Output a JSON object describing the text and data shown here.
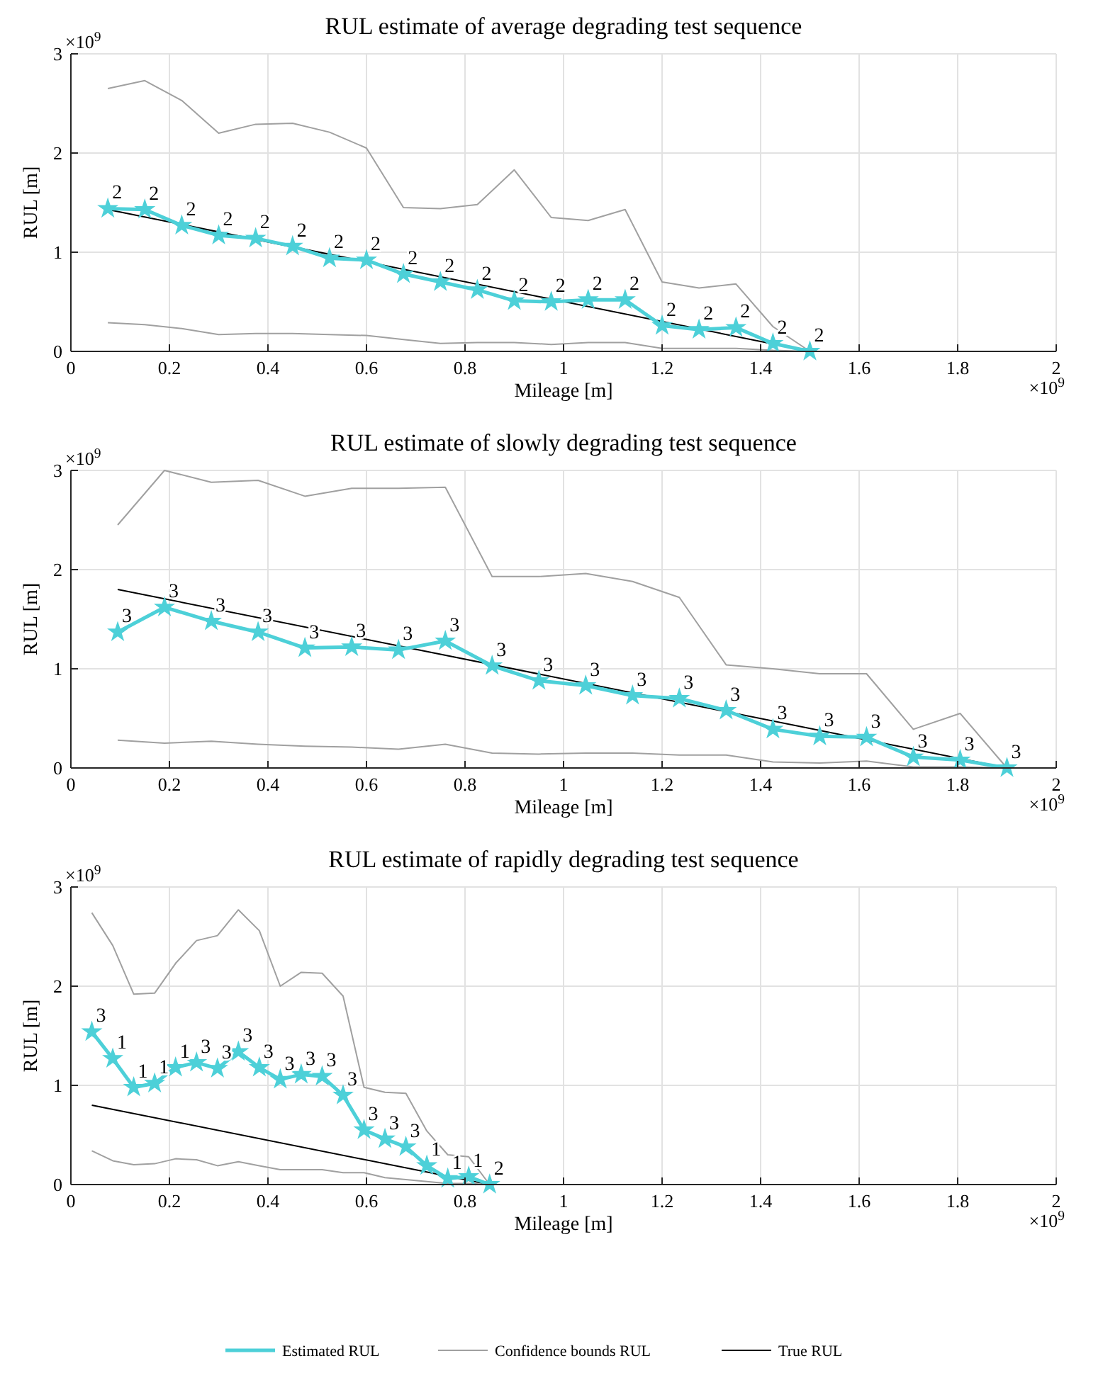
{
  "chart_data": [
    {
      "type": "line",
      "title": "RUL estimate of average degrading test sequence",
      "xlabel": "Mileage [m]",
      "ylabel": "RUL [m]",
      "xlim": [
        0,
        2
      ],
      "ylim": [
        0,
        3
      ],
      "xticks": [
        0,
        0.2,
        0.4,
        0.6,
        0.8,
        1,
        1.2,
        1.4,
        1.6,
        1.8,
        2
      ],
      "yticks": [
        0,
        1,
        2,
        3
      ],
      "grid": true,
      "legend": "bottom",
      "x": [
        0.075,
        0.15,
        0.225,
        0.3,
        0.375,
        0.45,
        0.525,
        0.6,
        0.675,
        0.75,
        0.825,
        0.9,
        0.975,
        1.05,
        1.125,
        1.2,
        1.275,
        1.35,
        1.425,
        1.5
      ],
      "series": [
        {
          "name": "Estimated RUL",
          "color": "#4dd0d8",
          "marker": "star",
          "values": [
            1.44,
            1.43,
            1.27,
            1.17,
            1.14,
            1.06,
            0.94,
            0.92,
            0.78,
            0.7,
            0.62,
            0.51,
            0.5,
            0.52,
            0.52,
            0.26,
            0.22,
            0.24,
            0.08,
            0
          ]
        },
        {
          "name": "Confidence bounds RUL",
          "color": "#a0a0a0",
          "values": [
            2.65,
            2.73,
            2.53,
            2.2,
            2.29,
            2.3,
            2.21,
            2.05,
            1.45,
            1.44,
            1.48,
            1.83,
            1.35,
            1.32,
            1.43,
            0.7,
            0.64,
            0.68,
            0.25,
            0
          ]
        },
        {
          "color": "#a0a0a0",
          "values": [
            0.29,
            0.27,
            0.23,
            0.17,
            0.18,
            0.18,
            0.17,
            0.16,
            0.12,
            0.08,
            0.09,
            0.09,
            0.07,
            0.09,
            0.09,
            0.03,
            0.03,
            0.03,
            0.01,
            0
          ]
        },
        {
          "name": "True RUL",
          "color": "#000000",
          "x": [
            0.075,
            1.5
          ],
          "values": [
            1.43,
            0
          ]
        }
      ],
      "annotations": [
        "×10$^{9}$",
        "×10$^{9}$",
        {
          "text": "2",
          "x": 0.075,
          "y": 1.44
        },
        {
          "text": "2",
          "x": 0.15,
          "y": 1.43
        },
        {
          "text": "2",
          "x": 0.225,
          "y": 1.27
        },
        {
          "text": "2",
          "x": 0.3,
          "y": 1.17
        },
        {
          "text": "2",
          "x": 0.375,
          "y": 1.14
        },
        {
          "text": "2",
          "x": 0.45,
          "y": 1.06
        },
        {
          "text": "2",
          "x": 0.525,
          "y": 0.94
        },
        {
          "text": "2",
          "x": 0.6,
          "y": 0.92
        },
        {
          "text": "2",
          "x": 0.675,
          "y": 0.78
        },
        {
          "text": "2",
          "x": 0.75,
          "y": 0.7
        },
        {
          "text": "2",
          "x": 0.825,
          "y": 0.62
        },
        {
          "text": "2",
          "x": 0.9,
          "y": 0.51
        },
        {
          "text": "2",
          "x": 0.975,
          "y": 0.5
        },
        {
          "text": "2",
          "x": 1.05,
          "y": 0.52
        },
        {
          "text": "2",
          "x": 1.125,
          "y": 0.52
        },
        {
          "text": "2",
          "x": 1.2,
          "y": 0.26
        },
        {
          "text": "2",
          "x": 1.275,
          "y": 0.22
        },
        {
          "text": "2",
          "x": 1.35,
          "y": 0.24
        },
        {
          "text": "2",
          "x": 1.425,
          "y": 0.08
        },
        {
          "text": "2",
          "x": 1.5,
          "y": 0
        }
      ]
    },
    {
      "type": "line",
      "title": "RUL estimate of slowly degrading test sequence",
      "xlabel": "Mileage [m]",
      "ylabel": "RUL [m]",
      "xlim": [
        0,
        2
      ],
      "ylim": [
        0,
        3
      ],
      "xticks": [
        0,
        0.2,
        0.4,
        0.6,
        0.8,
        1,
        1.2,
        1.4,
        1.6,
        1.8,
        2
      ],
      "yticks": [
        0,
        1,
        2,
        3
      ],
      "grid": true,
      "x": [
        0.095,
        0.19,
        0.285,
        0.38,
        0.475,
        0.57,
        0.665,
        0.76,
        0.855,
        0.95,
        1.045,
        1.14,
        1.235,
        1.33,
        1.425,
        1.52,
        1.615,
        1.71,
        1.805,
        1.9
      ],
      "series": [
        {
          "color": "#4dd0d8",
          "marker": "star",
          "values": [
            1.37,
            1.62,
            1.48,
            1.37,
            1.21,
            1.22,
            1.19,
            1.28,
            1.03,
            0.88,
            0.83,
            0.73,
            0.7,
            0.58,
            0.39,
            0.32,
            0.31,
            0.11,
            0.08,
            0
          ]
        },
        {
          "color": "#a0a0a0",
          "values": [
            2.45,
            3.0,
            2.88,
            2.9,
            2.74,
            2.82,
            2.82,
            2.83,
            1.93,
            1.93,
            1.96,
            1.88,
            1.72,
            1.04,
            1.0,
            0.95,
            0.95,
            0.39,
            0.55,
            0
          ]
        },
        {
          "color": "#a0a0a0",
          "values": [
            0.28,
            0.25,
            0.27,
            0.24,
            0.22,
            0.21,
            0.19,
            0.24,
            0.15,
            0.14,
            0.15,
            0.15,
            0.13,
            0.13,
            0.06,
            0.05,
            0.07,
            0.01,
            0.01,
            0
          ]
        },
        {
          "color": "#000000",
          "x": [
            0.095,
            1.9
          ],
          "values": [
            1.8,
            0
          ]
        }
      ],
      "annotations": [
        "×10$^{9}$",
        "×10$^{9}$",
        {
          "text": "3",
          "x": 0.095,
          "y": 1.37
        },
        {
          "text": "3",
          "x": 0.19,
          "y": 1.62
        },
        {
          "text": "3",
          "x": 0.285,
          "y": 1.48
        },
        {
          "text": "3",
          "x": 0.38,
          "y": 1.37
        },
        {
          "text": "3",
          "x": 0.475,
          "y": 1.21
        },
        {
          "text": "3",
          "x": 0.57,
          "y": 1.22
        },
        {
          "text": "3",
          "x": 0.665,
          "y": 1.19
        },
        {
          "text": "3",
          "x": 0.76,
          "y": 1.28
        },
        {
          "text": "3",
          "x": 0.855,
          "y": 1.03
        },
        {
          "text": "3",
          "x": 0.95,
          "y": 0.88
        },
        {
          "text": "3",
          "x": 1.045,
          "y": 0.83
        },
        {
          "text": "3",
          "x": 1.14,
          "y": 0.73
        },
        {
          "text": "3",
          "x": 1.235,
          "y": 0.7
        },
        {
          "text": "3",
          "x": 1.33,
          "y": 0.58
        },
        {
          "text": "3",
          "x": 1.425,
          "y": 0.39
        },
        {
          "text": "3",
          "x": 1.52,
          "y": 0.32
        },
        {
          "text": "3",
          "x": 1.615,
          "y": 0.31
        },
        {
          "text": "3",
          "x": 1.71,
          "y": 0.11
        },
        {
          "text": "3",
          "x": 1.805,
          "y": 0.08
        },
        {
          "text": "3",
          "x": 1.9,
          "y": 0
        }
      ]
    },
    {
      "type": "line",
      "title": "RUL estimate of rapidly degrading test sequence",
      "xlabel": "Mileage [m]",
      "ylabel": "RUL [m]",
      "xlim": [
        0,
        2
      ],
      "ylim": [
        0,
        3
      ],
      "xticks": [
        0,
        0.2,
        0.4,
        0.6,
        0.8,
        1,
        1.2,
        1.4,
        1.6,
        1.8,
        2
      ],
      "yticks": [
        0,
        1,
        2,
        3
      ],
      "grid": true,
      "x": [
        0.0425,
        0.085,
        0.1275,
        0.17,
        0.2125,
        0.255,
        0.2975,
        0.34,
        0.3825,
        0.425,
        0.4675,
        0.51,
        0.5525,
        0.595,
        0.6375,
        0.68,
        0.7225,
        0.765,
        0.8075,
        0.85
      ],
      "series": [
        {
          "color": "#4dd0d8",
          "marker": "star",
          "values": [
            1.54,
            1.27,
            0.98,
            1.02,
            1.18,
            1.23,
            1.17,
            1.34,
            1.18,
            1.06,
            1.11,
            1.09,
            0.9,
            0.55,
            0.46,
            0.38,
            0.19,
            0.06,
            0.08,
            0
          ]
        },
        {
          "color": "#a0a0a0",
          "values": [
            2.74,
            2.41,
            1.92,
            1.93,
            2.23,
            2.46,
            2.51,
            2.77,
            2.56,
            2.0,
            2.14,
            2.13,
            1.9,
            0.98,
            0.93,
            0.92,
            0.54,
            0.3,
            0.28,
            0
          ]
        },
        {
          "color": "#a0a0a0",
          "values": [
            0.34,
            0.24,
            0.2,
            0.21,
            0.26,
            0.25,
            0.19,
            0.23,
            0.19,
            0.15,
            0.15,
            0.15,
            0.12,
            0.12,
            0.07,
            0.05,
            0.03,
            0.01,
            0.01,
            0
          ]
        },
        {
          "color": "#000000",
          "x": [
            0.0425,
            0.85
          ],
          "values": [
            0.8,
            0
          ]
        }
      ],
      "annotations": [
        "×10$^{9}$",
        "×10$^{9}$",
        {
          "text": "3",
          "x": 0.0425,
          "y": 1.54
        },
        {
          "text": "1",
          "x": 0.085,
          "y": 1.27
        },
        {
          "text": "1",
          "x": 0.1275,
          "y": 0.98
        },
        {
          "text": "1",
          "x": 0.17,
          "y": 1.02
        },
        {
          "text": "1",
          "x": 0.2125,
          "y": 1.18
        },
        {
          "text": "3",
          "x": 0.255,
          "y": 1.23
        },
        {
          "text": "3",
          "x": 0.2975,
          "y": 1.17
        },
        {
          "text": "3",
          "x": 0.34,
          "y": 1.34
        },
        {
          "text": "3",
          "x": 0.3825,
          "y": 1.18
        },
        {
          "text": "3",
          "x": 0.425,
          "y": 1.06
        },
        {
          "text": "3",
          "x": 0.4675,
          "y": 1.11
        },
        {
          "text": "3",
          "x": 0.51,
          "y": 1.09
        },
        {
          "text": "3",
          "x": 0.5525,
          "y": 0.9
        },
        {
          "text": "3",
          "x": 0.595,
          "y": 0.55
        },
        {
          "text": "3",
          "x": 0.6375,
          "y": 0.46
        },
        {
          "text": "3",
          "x": 0.68,
          "y": 0.38
        },
        {
          "text": "1",
          "x": 0.7225,
          "y": 0.19
        },
        {
          "text": "1",
          "x": 0.765,
          "y": 0.06
        },
        {
          "text": "1",
          "x": 0.8075,
          "y": 0.08
        },
        {
          "text": "2",
          "x": 0.85,
          "y": 0
        }
      ]
    }
  ]
}
